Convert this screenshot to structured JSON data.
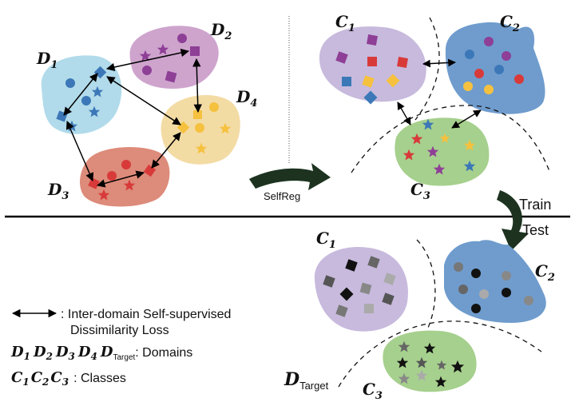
{
  "domains": {
    "d1": {
      "main": "D",
      "sub": "1"
    },
    "d2": {
      "main": "D",
      "sub": "2"
    },
    "d3": {
      "main": "D",
      "sub": "3"
    },
    "d4": {
      "main": "D",
      "sub": "4"
    }
  },
  "classes_train": {
    "c1": {
      "main": "C",
      "sub": "1"
    },
    "c2": {
      "main": "C",
      "sub": "2"
    },
    "c3": {
      "main": "C",
      "sub": "3"
    }
  },
  "classes_test": {
    "c1": {
      "main": "C",
      "sub": "1"
    },
    "c2": {
      "main": "C",
      "sub": "2"
    },
    "c3": {
      "main": "C",
      "sub": "3"
    }
  },
  "target_label": {
    "main": "D",
    "sub": "Target"
  },
  "arrows": {
    "selfreg": "SelfReg",
    "train": "Train",
    "test": "Test"
  },
  "legend": {
    "loss_line1": ": Inter-domain Self-supervised",
    "loss_line2": "Dissimilarity Loss",
    "domains_symbols": {
      "d1": "1",
      "d2": "2",
      "d3": "3",
      "d4": "4",
      "target": "Target"
    },
    "domains_text": ": Domains",
    "classes_symbols": {
      "c1": "1",
      "c2": "2",
      "c3": "3"
    },
    "classes_text": ": Classes"
  },
  "colors": {
    "d1_blob": "#a9d7e8",
    "d2_blob": "#c99ac8",
    "d3_blob": "#d97e6c",
    "d4_blob": "#f2d79a",
    "c1_blob": "#c7badd",
    "c2_blob": "#6f9ccd",
    "c3_blob": "#a6d08d",
    "blue": "#3c78b8",
    "purple": "#8e3f96",
    "red": "#d83a3a",
    "yellow": "#f5c13e",
    "arrow": "#1d3320"
  }
}
